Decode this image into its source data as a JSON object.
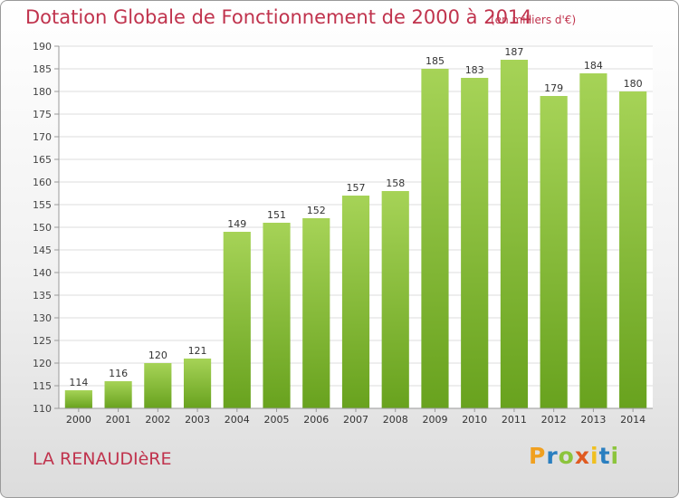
{
  "header": {
    "title": "Dotation Globale de Fonctionnement de 2000 à 2014",
    "unit": "(en milliers d'€)"
  },
  "footer": {
    "commune": "LA RENAUDIèRE"
  },
  "logo": {
    "letters": [
      "P",
      "r",
      "o",
      "x",
      "i",
      "t",
      "i"
    ],
    "colors": [
      "#f0a020",
      "#2a7fc0",
      "#8cc43c",
      "#e05a20",
      "#f0c020",
      "#2a7fc0",
      "#8cc43c"
    ]
  },
  "colors": {
    "title": "#c0334d",
    "bar_light": "#a6d357",
    "bar_dark": "#68a21e",
    "grid": "#dddddd",
    "axis": "#999999"
  },
  "chart_data": {
    "type": "bar",
    "categories": [
      "2000",
      "2001",
      "2002",
      "2003",
      "2004",
      "2005",
      "2006",
      "2007",
      "2008",
      "2009",
      "2010",
      "2011",
      "2012",
      "2013",
      "2014"
    ],
    "values": [
      114,
      116,
      120,
      121,
      149,
      151,
      152,
      157,
      158,
      185,
      183,
      187,
      179,
      184,
      180
    ],
    "ylim": [
      110,
      190
    ],
    "yticks": [
      110,
      115,
      120,
      125,
      130,
      135,
      140,
      145,
      150,
      155,
      160,
      165,
      170,
      175,
      180,
      185,
      190
    ],
    "grid": true
  }
}
